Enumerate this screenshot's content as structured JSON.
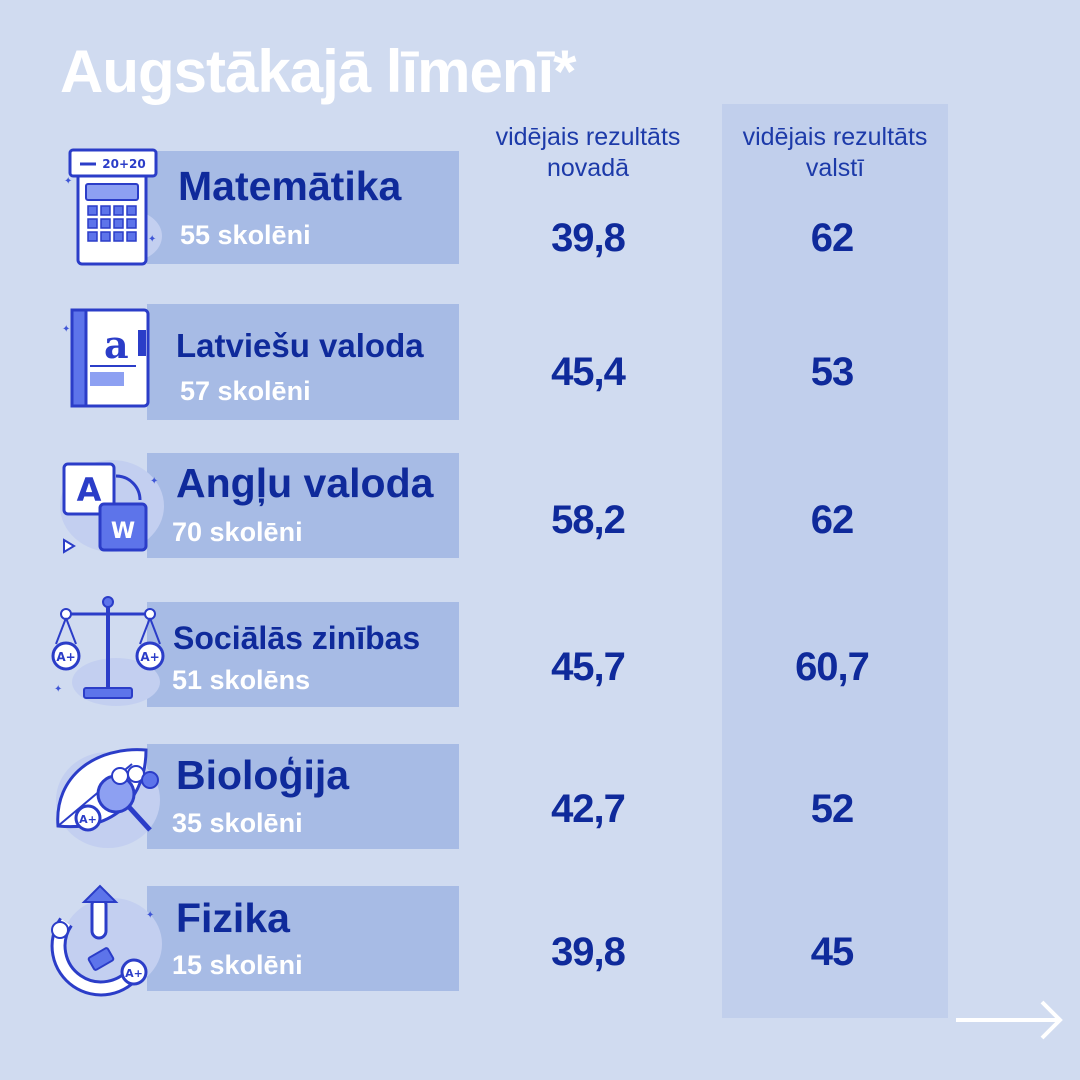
{
  "title": "Augstākajā līmenī*",
  "columns": {
    "region": "vidējais rezultāts novadā",
    "country": "vidējais rezultāts valstī"
  },
  "subjects": [
    {
      "name": "Matemātika",
      "count": "55 skolēni",
      "region": "39,8",
      "country": "62",
      "icon": "calculator-icon"
    },
    {
      "name": "Latviešu valoda",
      "count": "57 skolēni",
      "region": "45,4",
      "country": "53",
      "icon": "book-icon"
    },
    {
      "name": "Angļu valoda",
      "count": "70 skolēni",
      "region": "58,2",
      "country": "62",
      "icon": "translate-icon"
    },
    {
      "name": "Sociālās zinības",
      "count": "51 skolēns",
      "region": "45,7",
      "country": "60,7",
      "icon": "scales-icon"
    },
    {
      "name": "Bioloģija",
      "count": "35 skolēni",
      "region": "42,7",
      "country": "52",
      "icon": "leaf-magnifier-icon"
    },
    {
      "name": "Fizika",
      "count": "15 skolēni",
      "region": "39,8",
      "country": "45",
      "icon": "magnet-icon"
    }
  ],
  "colors": {
    "background": "#d0dbf0",
    "accent": "#0f2a9b",
    "label_box": "#a7bbe5",
    "column_highlight": "#c1cfec"
  }
}
